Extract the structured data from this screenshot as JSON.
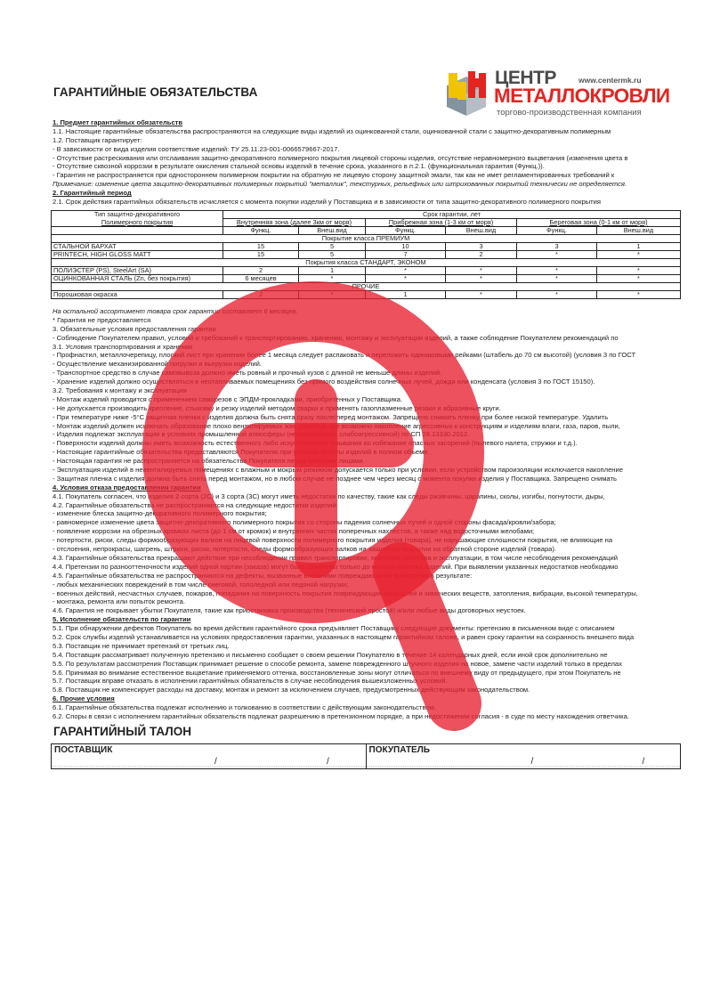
{
  "header": {
    "title": "ГАРАНТИЙНЫЕ ОБЯЗАТЕЛЬСТВА",
    "logo": {
      "line1": "ЦЕНТР",
      "line2": "МЕТАЛЛОКРОВЛИ",
      "url": "www.centermk.ru",
      "subtitle": "торгово-производственная компания",
      "brand_red": "#e42421",
      "brand_gray": "#4a4a4a"
    }
  },
  "intro_lines": [
    {
      "text": "1. Предмет гарантийных обязательств",
      "style": "heading"
    },
    {
      "text": "1.1. Настоящие гарантийные обязательства распространяются на следующие виды изделий из оцинкованной стали, оцинкованной стали с защитно-декоративным полимерным",
      "style": "normal"
    },
    {
      "text": "1.2. Поставщик гарантирует:",
      "style": "normal"
    },
    {
      "text": "- В зависимости от вида изделия соответствие изделий: ТУ 25.11.23-001-0066579667-2017.",
      "style": "normal"
    },
    {
      "text": "- Отсутствие растрескивания или отслаивания защитно-декоративного полимерного покрытия лицевой стороны изделия, отсутствие неравномерного выцветания (изменения цвета в",
      "style": "normal"
    },
    {
      "text": "- Отсутствие сквозной коррозии в результате окисления стальной основы изделий в течение срока, указанного в п.2.1. (функциональная гарантия (Функц.)).",
      "style": "normal"
    },
    {
      "text": "- Гарантия не распространяется при одностороннем полимерном покрытии на обратную не лицевую сторону защитной эмали, так как не имет регламентированных требований к",
      "style": "normal"
    },
    {
      "text": "Примечание: изменение цвета защитно-декоративных полимерных покрытий \"металлик\", текстурных, рельефных или штрихованных покрытий технически не определяется.",
      "style": "italic"
    },
    {
      "text": "2. Гарантийный период",
      "style": "heading"
    },
    {
      "text": "2.1. Срок действия гарантийных обязательств исчисляется с момента покупки изделий у Поставщика и в зависимости от типа защитно-декоративного полимерного покрытия",
      "style": "normal"
    }
  ],
  "warranty_table": {
    "type_header_1": "Тип защитно-декоративного",
    "type_header_2": "Полимерного покрытия",
    "term_header": "Срок гарантии, лет",
    "zones": [
      "Внутренняя зона (далее 3км от моря)",
      "Прибрежная зона (1-3 км от моря)",
      "Береговая зона (0-1 км от моря)"
    ],
    "subheaders": [
      "Функц.",
      "Внеш.вид",
      "Функц.",
      "Внеш.вид",
      "Функц.",
      "Внеш.вид"
    ],
    "groups": [
      {
        "label": "Покрытие класса ПРЕМИУМ",
        "rows": [
          {
            "name": "СТАЛЬНОЙ БАРХАТ",
            "values": [
              "15",
              "5",
              "10",
              "3",
              "3",
              "1"
            ]
          },
          {
            "name": "PRINTECH, HIGH GLOSS MATT",
            "values": [
              "15",
              "5",
              "7",
              "2",
              "*",
              "*"
            ]
          }
        ]
      },
      {
        "label": "Покрытия класса СТАНДАРТ, ЭКОНОМ",
        "rows": [
          {
            "name": "ПОЛИЭСТЕР (PS),  SteelArt (SA)",
            "values": [
              "2",
              "1",
              "*",
              "*",
              "*",
              "*"
            ]
          },
          {
            "name": "ОЦИНКОВАННАЯ СТАЛЬ (Zn, без покрытия)",
            "values": [
              "6 месяцев",
              "*",
              "*",
              "*",
              "*",
              "*"
            ]
          }
        ]
      },
      {
        "label": "ПРОЧИЕ",
        "rows": [
          {
            "name": "Порошковая окраска",
            "values": [
              "2",
              "*",
              "1",
              "*",
              "*",
              "*"
            ]
          }
        ]
      }
    ]
  },
  "body_lines": [
    {
      "text": "На остальной ассортимент товара срок гарантии составляет 6 месяцев.",
      "style": "italic"
    },
    {
      "text": "* Гарантия не предоставляется",
      "style": "normal"
    },
    {
      "text": "3. Обязательные условия предоставления гарантии",
      "style": "normal"
    },
    {
      "text": "- Соблюдение Покупателем правил, условий и требований к транспортированию, хранению, монтажу и эксплуатации изделий, а также соблюдение Покупателем рекомендаций по",
      "style": "normal"
    },
    {
      "text": "3.1. Условия транспортирования и хранения",
      "style": "normal"
    },
    {
      "text": "- Профнастил, металлочерепицу, плоский лист при хранении более 1 месяца следует распаковать и переложить одинаковыми рейками (штабель до 70 см высотой) (условия 3 по ГОСТ",
      "style": "normal"
    },
    {
      "text": "- Осуществление механизированной погрузки и выгрузки изделий.",
      "style": "normal"
    },
    {
      "text": "- Транспортное средство в случае самовывоза должно иметь ровный и прочный кузов с длиной не меньше длины изделий.",
      "style": "normal"
    },
    {
      "text": "- Хранение изделий должно осуществляться в неотапливаемых помещениях без прямого воздействия солнечных лучей, дождя или конденсата (условия 3 по ГОСТ 15150).",
      "style": "normal"
    },
    {
      "text": "3.2. Требования к монтажу и эксплуатации",
      "style": "normal"
    },
    {
      "text": "- Монтаж изделий проводится с применением саморезов с ЭПДМ-прокладками, приобретенных у Поставщика.",
      "style": "normal"
    },
    {
      "text": "- Не допускается производить крепление, стыковку и резку изделий методом сварки и применять газоплазменные резаки и абразивные круги.",
      "style": "normal"
    },
    {
      "text": "- При температуре ниже -5°С защитная пленка с изделия должна быть снята сразу после/перед монтажом. Запрещено снимать пленку при более низкой температуре. Удалить",
      "style": "normal"
    },
    {
      "text": "- Монтаж изделий должен исключать образование плохо вентилируемых зон, участков, где возможно накопление агрессивных к конструкциям и изделиям влаги, газа, паров, пыли,",
      "style": "normal"
    },
    {
      "text": "- Изделия подлежат эксплуатации в условиях промышленной атмосферы (неагрессивной, слабоагрессивной) по СП 28.13330.2012.",
      "style": "normal"
    },
    {
      "text": "- Поверхности изделий должны иметь возможность естественного либо искусственного омывания во избежание опасных засорений (пылевого налета, стружки и т.д.).",
      "style": "normal"
    },
    {
      "text": "- Настоящие гарантийные обязательства предоставляются Покупателю при условии оплаты изделий в полном объеме.",
      "style": "normal"
    },
    {
      "text": "- Настоящая гарантия не распространяется на обязательства Покупателя перед третьими лицами.",
      "style": "normal"
    },
    {
      "text": "- Эксплуатация изделий в невентилируемых помещениях с влажным и мокрым режимом допускается только при условии, если устройством пароизоляции исключается накопление",
      "style": "normal"
    },
    {
      "text": "- Защитная пленка с изделия должна быть снята перед монтажом, но в любом случае не позднее чем через месяц с момента покупки изделия у Поставщика. Запрещено снимать",
      "style": "normal"
    },
    {
      "text": "4. Условия отказа предоставления гарантии",
      "style": "heading"
    },
    {
      "text": "4.1. Покупатель согласен, что изделия 2 сорта (2С) и 3 сорта (3С) могут иметь недостатки по качеству, такие как следы ржавчины, царапины, сколы, изгибы, погнутости, дыры,",
      "style": "normal"
    },
    {
      "text": "4.2. Гарантийные обязательства не распространяются на следующие недостатки изделий:",
      "style": "normal"
    },
    {
      "text": "- изменение блеска защитно-декоративного полимерного покрытия;",
      "style": "normal"
    },
    {
      "text": "- равномерное изменение цвета защитно-декоративного полимерного покрытия со стороны падения солнечных лучей и одной стороны фасада/кровли/забора;",
      "style": "normal"
    },
    {
      "text": "- появление коррозии на обрезных кромках листа (до 1 см от кромок) и внутренних частях поперечных нахлестов, а также над водосточными желобами;",
      "style": "normal"
    },
    {
      "text": "- потертости, риски, следы формообразующих валков на лицевой поверхности полимерного покрытия изделия (товара), не нарушающие сплошности покрытия, не влияющие на",
      "style": "normal"
    },
    {
      "text": "- отслоения, непрокрасы, шагрень, штрихи, риски, потертости, следы формообразующих валков на защитном покрытии на обратной стороне изделий (товара).",
      "style": "normal"
    },
    {
      "text": "4.3. Гарантийные обязательства прекращают действие при несоблюдении правил транспортировки, хранения, монтажа и эксплуатации, в том числе несоблюдения рекомендаций",
      "style": "normal"
    },
    {
      "text": "4.4. Претензии по разнооттеночности изделий одной партии (заказа) могут быть заявлены только до начала монтажа изделий. При выявлении указанных недостатков необходимо",
      "style": "normal"
    },
    {
      "text": "4.5. Гарантийные обязательства не распространяются на дефекты, вызванные внешними повреждающими факторами в результате:",
      "style": "normal"
    },
    {
      "text": "- любых механических повреждений в том числе снеговой, гололедной или ледяной нагрузки;",
      "style": "normal"
    },
    {
      "text": "- военных действий, несчастных случаев, пожаров, попадания на поверхность покрытия повреждающих жидкостей и химических веществ, затопления, вибрации, высокой температуры,",
      "style": "normal"
    },
    {
      "text": "- монтажа, ремонта или попыток ремонта.",
      "style": "normal"
    },
    {
      "text": "4.6. Гарантия не покрывает убытки Покупателя, такие как приостановка производства (технический простой) и/или любые виды договорных неустоек.",
      "style": "normal"
    },
    {
      "text": "5. Исполнение обязательств по гарантии",
      "style": "heading"
    },
    {
      "text": "5.1. При обнаружении дефектов Покупатель во время действия гарантийного срока предъявляет Поставщику следующие документы: претензию в письменном виде с описанием",
      "style": "normal"
    },
    {
      "text": "5.2. Срок службы изделий устанавливается на условиях предоставления гарантии, указанных в настоящем гарантийном талоне, и равен сроку гарантии на сохранность внешнего вида",
      "style": "normal"
    },
    {
      "text": "5.3. Поставщик не принимает претензий от третьих лиц.",
      "style": "normal"
    },
    {
      "text": "5.4. Поставщик рассматривает полученную претензию и письменно сообщает о своем решении Покупателю в течение 14 календарных дней, если иной срок дополнительно не",
      "style": "normal"
    },
    {
      "text": "5.5. По результатам рассмотрения Поставщик принимает решение о способе ремонта, замене поврежденного штучного изделия на новое, замене части изделий только в пределах",
      "style": "normal"
    },
    {
      "text": "5.6. Принимая во внимание естественное выцветание применяемого оттенка, восстановленные зоны могут отличаться по внешнему виду от предыдущего, при этом Покупатель не",
      "style": "normal"
    },
    {
      "text": "5.7. Поставщик вправе отказать в исполнении гарантийных обязательств в случае несоблюдения вышеизложенных условий.",
      "style": "normal"
    },
    {
      "text": "5.8. Поставщик не компенсирует расходы на доставку, монтаж и ремонт за исключением случаев, предусмотренных действующим законодательством.",
      "style": "normal"
    },
    {
      "text": "6. Прочие условия",
      "style": "heading"
    },
    {
      "text": "6.1. Гарантийные обязательства подлежат исполнению и толкованию в соответствии с действующим законодательством.",
      "style": "normal"
    },
    {
      "text": "6.2. Споры в связи с исполнением гарантийных обязательств подлежат разрешению в претензионном порядке, а при недостижении согласия - в суде по месту нахождения ответчика.",
      "style": "normal"
    }
  ],
  "talon": {
    "title": "ГАРАНТИЙНЫЙ ТАЛОН",
    "supplier_label": "ПОСТАВЩИК",
    "buyer_label": "ПОКУПАТЕЛЬ",
    "separator": "/"
  },
  "watermark": {
    "icon": "red-q-plus-watermark",
    "color": "#e8202f"
  }
}
